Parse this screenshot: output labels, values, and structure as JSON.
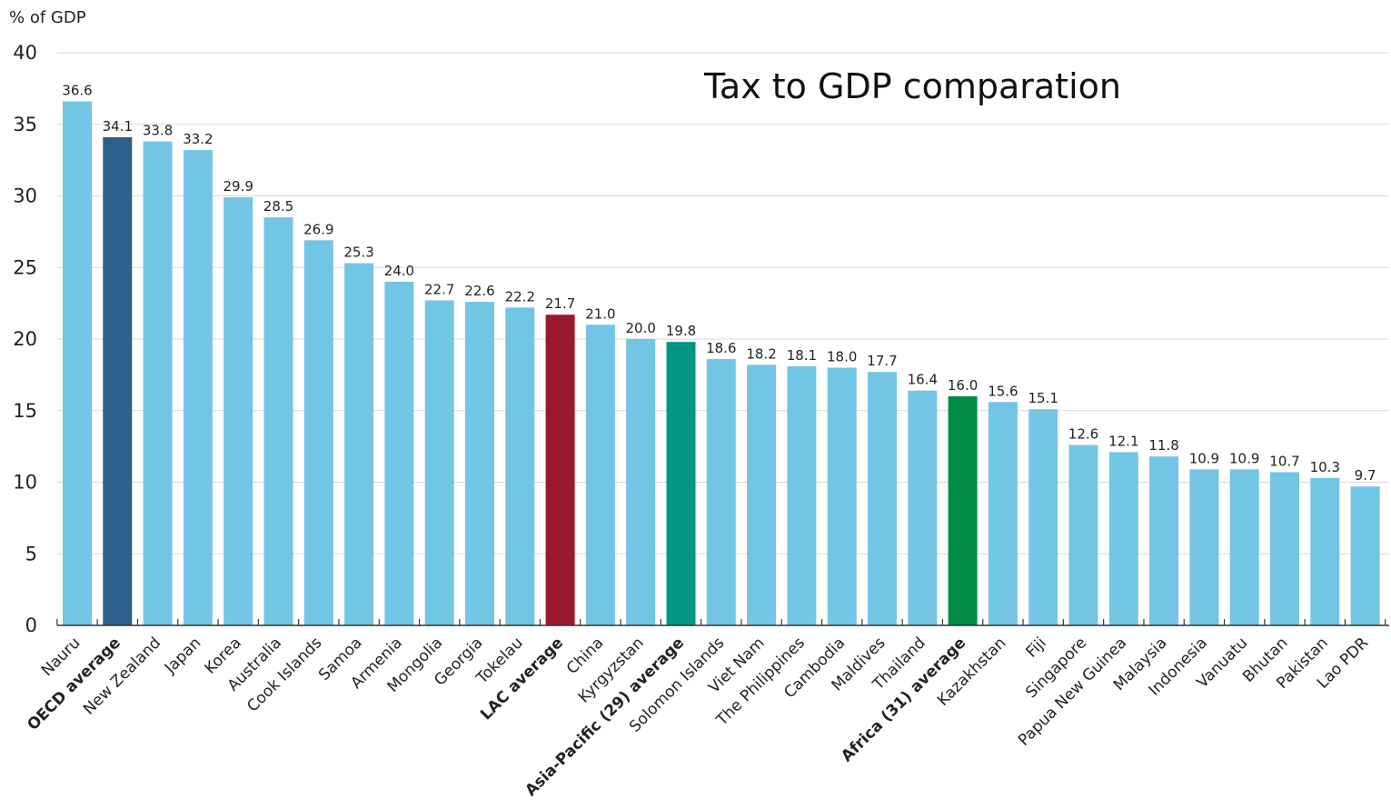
{
  "chart_data": {
    "type": "bar",
    "title": "Tax to GDP comparation",
    "ylabel": "% of GDP",
    "ylim": [
      0,
      40
    ],
    "yticks": [
      "0",
      "5",
      "10",
      "15",
      "20",
      "25",
      "30",
      "35",
      "40"
    ],
    "grid": true,
    "categories": [
      "Nauru",
      "OECD average",
      "New Zealand",
      "Japan",
      "Korea",
      "Australia",
      "Cook Islands",
      "Samoa",
      "Armenia",
      "Mongolia",
      "Georgia",
      "Tokelau",
      "LAC average",
      "China",
      "Kyrgyzstan",
      "Asia-Pacific (29) average",
      "Solomon Islands",
      "Viet Nam",
      "The Philippines",
      "Cambodia",
      "Maldives",
      "Thailand",
      "Africa (31) average",
      "Kazakhstan",
      "Fiji",
      "Singapore",
      "Papua New Guinea",
      "Malaysia",
      "Indonesia",
      "Vanuatu",
      "Bhutan",
      "Pakistan",
      "Lao PDR"
    ],
    "values": [
      36.6,
      34.1,
      33.8,
      33.2,
      29.9,
      28.5,
      26.9,
      25.3,
      24.0,
      22.7,
      22.6,
      22.2,
      21.7,
      21.0,
      20.0,
      19.8,
      18.6,
      18.2,
      18.1,
      18.0,
      17.7,
      16.4,
      16.0,
      15.6,
      15.1,
      12.6,
      12.1,
      11.8,
      10.9,
      10.9,
      10.7,
      10.3,
      9.7
    ],
    "value_labels": [
      "36.6",
      "34.1",
      "33.8",
      "33.2",
      "29.9",
      "28.5",
      "26.9",
      "25.3",
      "24.0",
      "22.7",
      "22.6",
      "22.2",
      "21.7",
      "21.0",
      "20.0",
      "19.8",
      "18.6",
      "18.2",
      "18.1",
      "18.0",
      "17.7",
      "16.4",
      "16.0",
      "15.6",
      "15.1",
      "12.6",
      "12.1",
      "11.8",
      "10.9",
      "10.9",
      "10.7",
      "10.3",
      "9.7"
    ],
    "colors": {
      "default_bar": "#73C5E5",
      "axis": "#333333",
      "grid": "#d9d9d9",
      "highlights": {
        "OECD average": {
          "bar": "#2B5F8C",
          "label": "#3D6E96"
        },
        "LAC average": {
          "bar": "#9C182F",
          "label": "#9C182F"
        },
        "Asia-Pacific (29) average": {
          "bar": "#009682",
          "label": "#18A595"
        },
        "Africa (31) average": {
          "bar": "#008C45",
          "label": "#1E9A4C"
        }
      }
    }
  }
}
